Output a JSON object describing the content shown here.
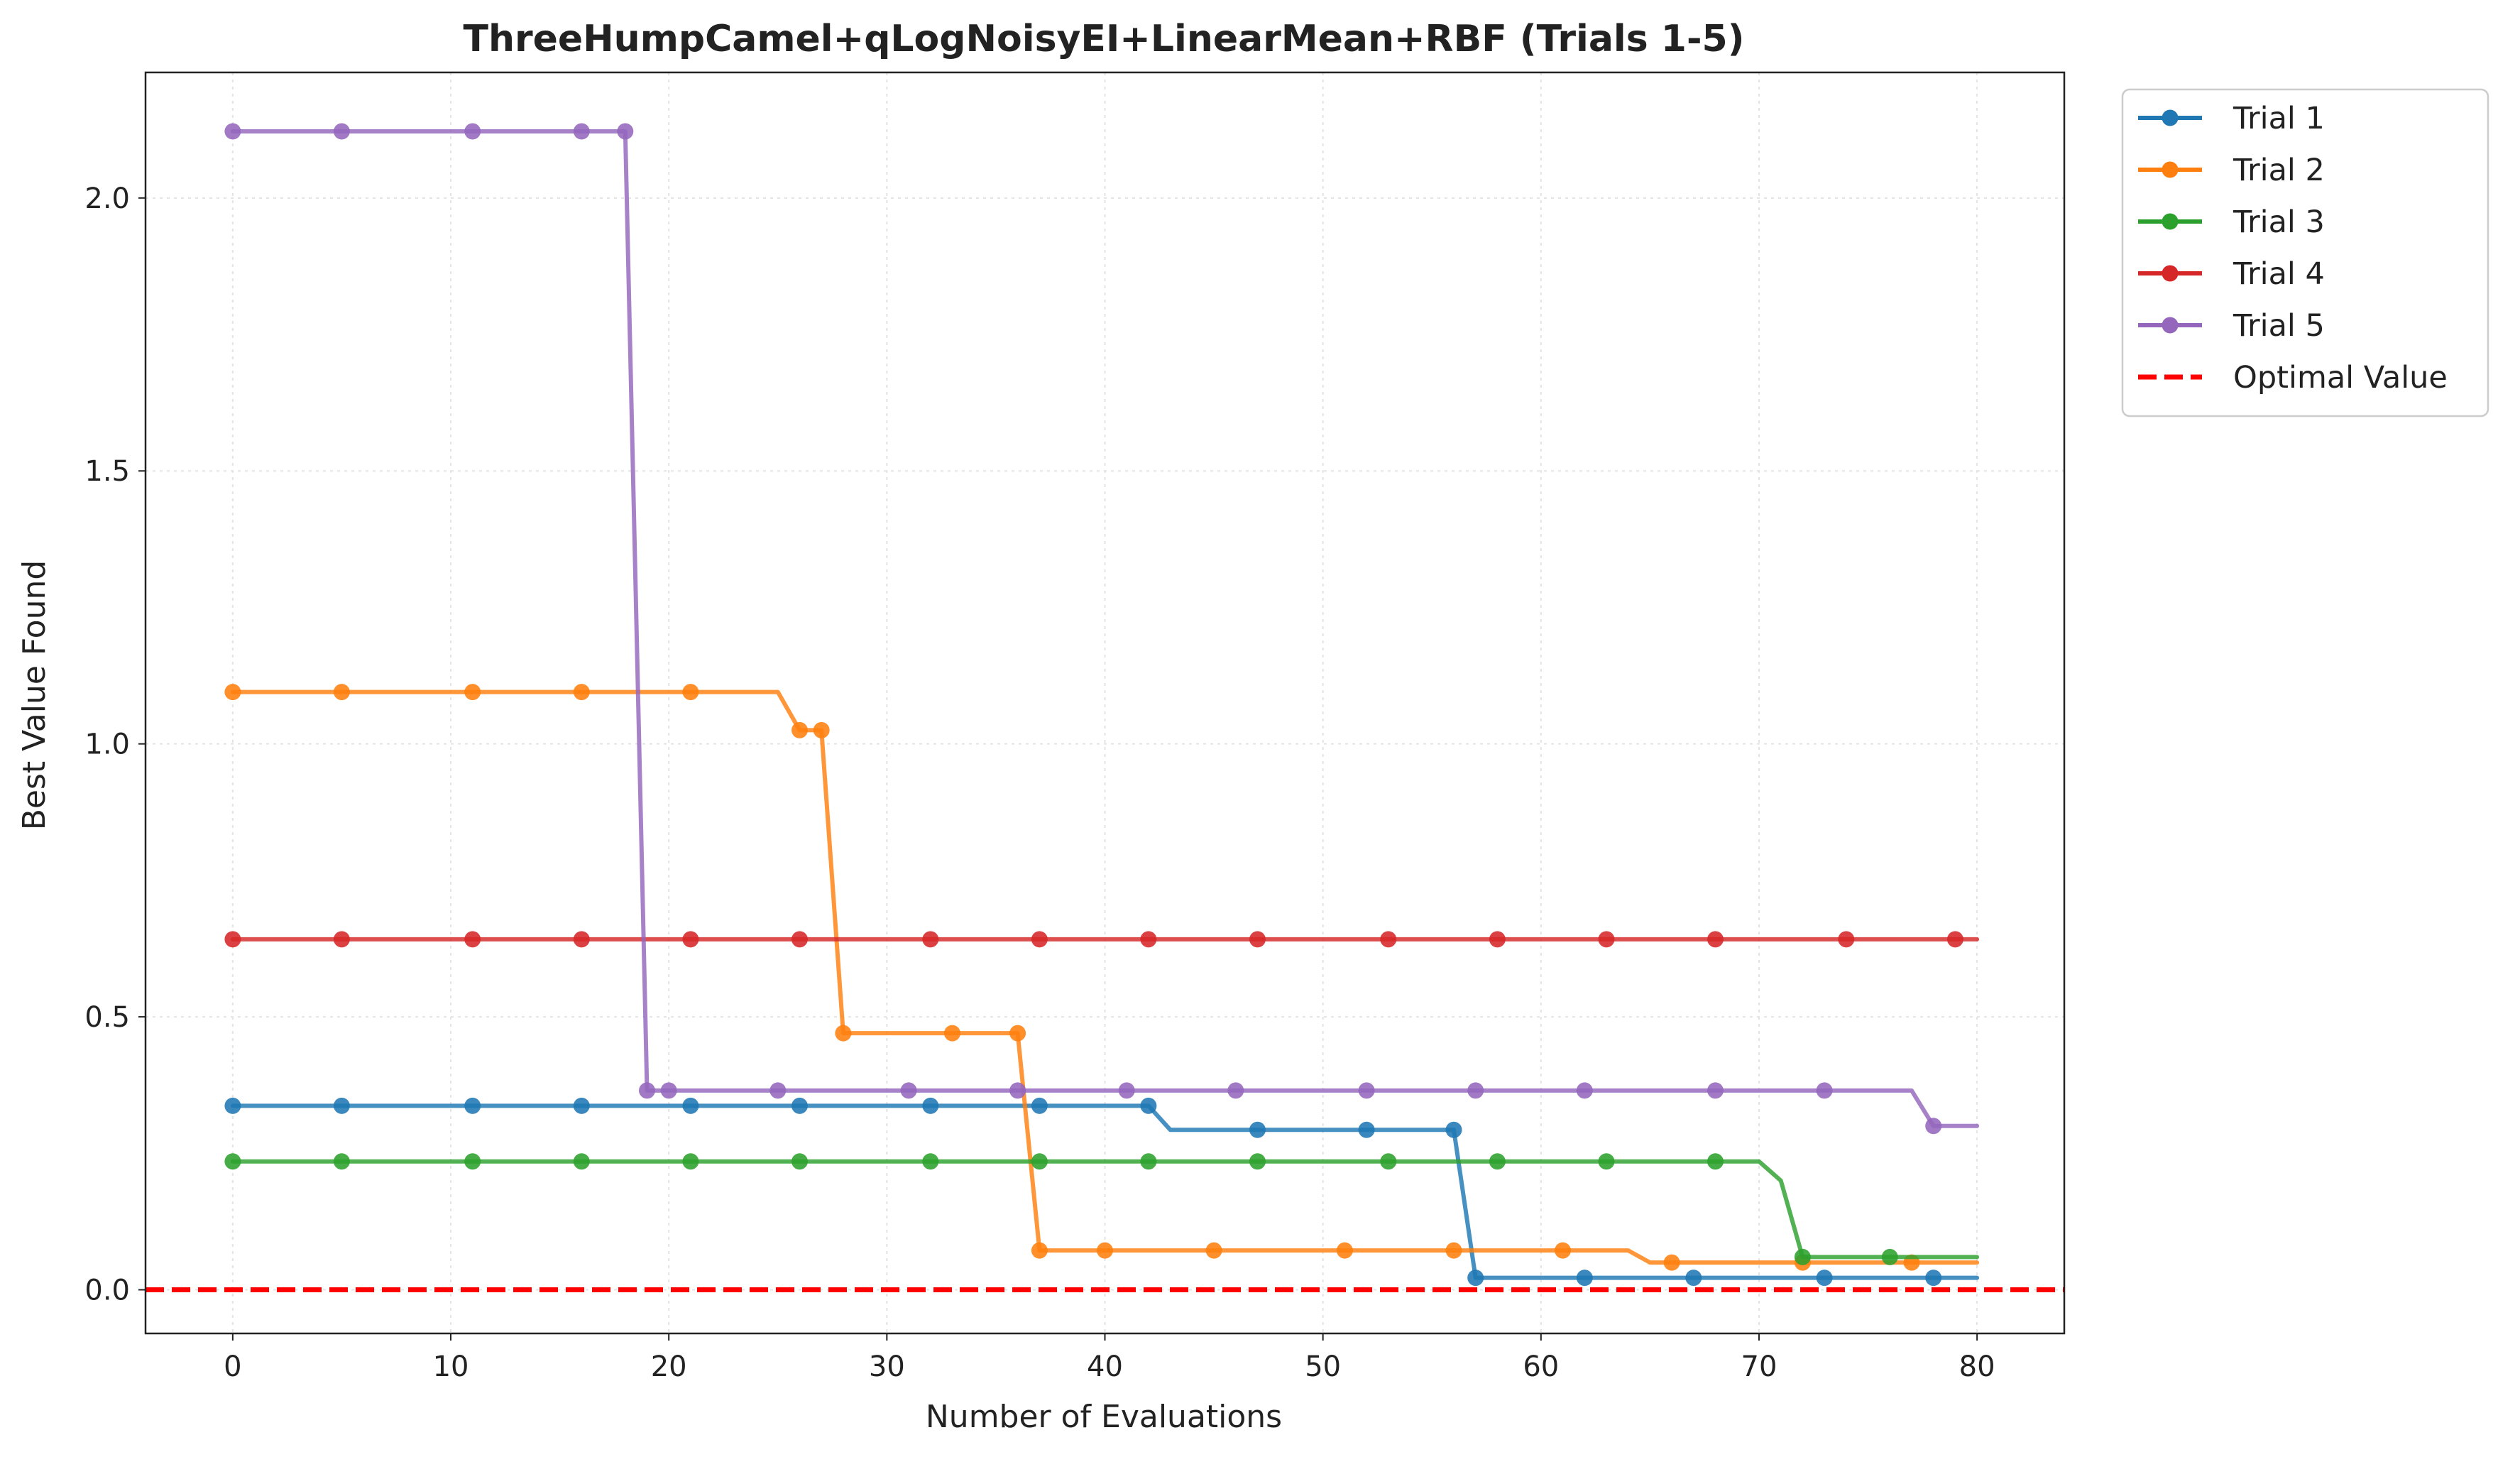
{
  "chart_data": {
    "type": "line",
    "title": "ThreeHumpCamel+qLogNoisyEI+LinearMean+RBF (Trials 1-5)",
    "xlabel": "Number of Evaluations",
    "ylabel": "Best Value Found",
    "xlim": [
      -4,
      84
    ],
    "ylim": [
      -0.08,
      2.23
    ],
    "xticks": [
      0,
      10,
      20,
      30,
      40,
      50,
      60,
      70,
      80
    ],
    "yticks": [
      0.0,
      0.5,
      1.0,
      1.5,
      2.0
    ],
    "xtick_labels": [
      "0",
      "10",
      "20",
      "30",
      "40",
      "50",
      "60",
      "70",
      "80"
    ],
    "ytick_labels": [
      "0.0",
      "0.5",
      "1.0",
      "1.5",
      "2.0"
    ],
    "grid": true,
    "legend_position": "outside-top-right",
    "series": [
      {
        "name": "Trial 1",
        "color": "#1f77b4",
        "line": [
          [
            0,
            0.337
          ],
          [
            42,
            0.337
          ],
          [
            43,
            0.293
          ],
          [
            56,
            0.293
          ],
          [
            57,
            0.022
          ],
          [
            80,
            0.022
          ]
        ],
        "markers": [
          [
            0,
            0.337
          ],
          [
            5,
            0.337
          ],
          [
            11,
            0.337
          ],
          [
            16,
            0.337
          ],
          [
            21,
            0.337
          ],
          [
            26,
            0.337
          ],
          [
            32,
            0.337
          ],
          [
            37,
            0.337
          ],
          [
            42,
            0.337
          ],
          [
            47,
            0.293
          ],
          [
            52,
            0.293
          ],
          [
            56,
            0.293
          ],
          [
            57,
            0.022
          ],
          [
            62,
            0.022
          ],
          [
            67,
            0.022
          ],
          [
            73,
            0.022
          ],
          [
            78,
            0.022
          ]
        ]
      },
      {
        "name": "Trial 2",
        "color": "#ff7f0e",
        "line": [
          [
            0,
            1.095
          ],
          [
            25,
            1.095
          ],
          [
            26,
            1.025
          ],
          [
            27,
            1.025
          ],
          [
            28,
            0.47
          ],
          [
            36,
            0.47
          ],
          [
            37,
            0.072
          ],
          [
            64,
            0.072
          ],
          [
            65,
            0.05
          ],
          [
            80,
            0.05
          ]
        ],
        "markers": [
          [
            0,
            1.095
          ],
          [
            5,
            1.095
          ],
          [
            11,
            1.095
          ],
          [
            16,
            1.095
          ],
          [
            21,
            1.095
          ],
          [
            26,
            1.025
          ],
          [
            27,
            1.025
          ],
          [
            28,
            0.47
          ],
          [
            33,
            0.47
          ],
          [
            36,
            0.47
          ],
          [
            37,
            0.072
          ],
          [
            40,
            0.072
          ],
          [
            45,
            0.072
          ],
          [
            51,
            0.072
          ],
          [
            56,
            0.072
          ],
          [
            61,
            0.072
          ],
          [
            66,
            0.05
          ],
          [
            72,
            0.05
          ],
          [
            77,
            0.05
          ]
        ]
      },
      {
        "name": "Trial 3",
        "color": "#2ca02c",
        "line": [
          [
            0,
            0.235
          ],
          [
            70,
            0.235
          ],
          [
            71,
            0.2
          ],
          [
            72,
            0.06
          ],
          [
            80,
            0.06
          ]
        ],
        "markers": [
          [
            0,
            0.235
          ],
          [
            5,
            0.235
          ],
          [
            11,
            0.235
          ],
          [
            16,
            0.235
          ],
          [
            21,
            0.235
          ],
          [
            26,
            0.235
          ],
          [
            32,
            0.235
          ],
          [
            37,
            0.235
          ],
          [
            42,
            0.235
          ],
          [
            47,
            0.235
          ],
          [
            53,
            0.235
          ],
          [
            58,
            0.235
          ],
          [
            63,
            0.235
          ],
          [
            68,
            0.235
          ],
          [
            72,
            0.06
          ],
          [
            76,
            0.06
          ]
        ]
      },
      {
        "name": "Trial 4",
        "color": "#d62728",
        "line": [
          [
            0,
            0.642
          ],
          [
            80,
            0.642
          ]
        ],
        "markers": [
          [
            0,
            0.642
          ],
          [
            5,
            0.642
          ],
          [
            11,
            0.642
          ],
          [
            16,
            0.642
          ],
          [
            21,
            0.642
          ],
          [
            26,
            0.642
          ],
          [
            32,
            0.642
          ],
          [
            37,
            0.642
          ],
          [
            42,
            0.642
          ],
          [
            47,
            0.642
          ],
          [
            53,
            0.642
          ],
          [
            58,
            0.642
          ],
          [
            63,
            0.642
          ],
          [
            68,
            0.642
          ],
          [
            74,
            0.642
          ],
          [
            79,
            0.642
          ]
        ]
      },
      {
        "name": "Trial 5",
        "color": "#9467bd",
        "line": [
          [
            0,
            2.122
          ],
          [
            18,
            2.122
          ],
          [
            19,
            0.365
          ],
          [
            77,
            0.365
          ],
          [
            78,
            0.3
          ],
          [
            80,
            0.3
          ]
        ],
        "markers": [
          [
            0,
            2.122
          ],
          [
            5,
            2.122
          ],
          [
            11,
            2.122
          ],
          [
            16,
            2.122
          ],
          [
            18,
            2.122
          ],
          [
            19,
            0.365
          ],
          [
            20,
            0.365
          ],
          [
            25,
            0.365
          ],
          [
            31,
            0.365
          ],
          [
            36,
            0.365
          ],
          [
            41,
            0.365
          ],
          [
            46,
            0.365
          ],
          [
            52,
            0.365
          ],
          [
            57,
            0.365
          ],
          [
            62,
            0.365
          ],
          [
            68,
            0.365
          ],
          [
            73,
            0.365
          ],
          [
            78,
            0.3
          ]
        ]
      }
    ],
    "reference_line": {
      "name": "Optimal Value",
      "y": 0.0,
      "color": "#ff0000",
      "style": "dashed"
    }
  }
}
